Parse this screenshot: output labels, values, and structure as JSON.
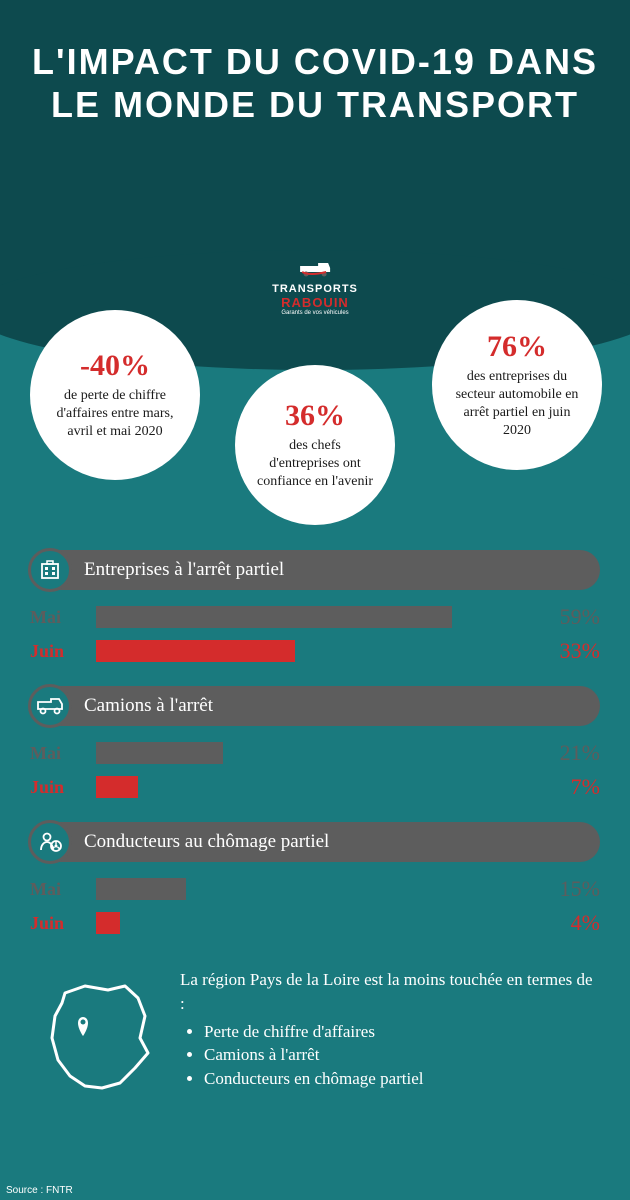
{
  "title": "L'IMPACT DU COVID-19 DANS LE MONDE DU TRANSPORT",
  "logo": {
    "line1": "TRANSPORTS",
    "line2": "RABOUIN",
    "line3": "Garants de vos véhicules"
  },
  "colors": {
    "background": "#1a7a7e",
    "header_bg": "#0d4a4e",
    "accent_red": "#d42c2c",
    "gray_bar": "#5d5d5d",
    "gray_text": "#5d5d5d",
    "white": "#ffffff"
  },
  "circles": [
    {
      "value": "-40%",
      "label": "de perte de chiffre d'affaires entre mars, avril et mai 2020"
    },
    {
      "value": "36%",
      "label": "des chefs d'entreprises ont confiance en l'avenir"
    },
    {
      "value": "76%",
      "label": "des entreprises du secteur automobile en arrêt partiel en juin 2020"
    }
  ],
  "sections": [
    {
      "title": "Entreprises à l'arrêt partiel",
      "icon": "building-icon",
      "bars": [
        {
          "label": "Mai",
          "value": 59,
          "display": "59%",
          "color": "#5d5d5d",
          "label_color": "#5d5d5d",
          "value_color": "#5d5d5d",
          "bar_max": 70
        },
        {
          "label": "Juin",
          "value": 33,
          "display": "33%",
          "color": "#d42c2c",
          "label_color": "#d42c2c",
          "value_color": "#d42c2c",
          "bar_max": 70
        }
      ]
    },
    {
      "title": "Camions à l'arrêt",
      "icon": "truck-icon",
      "bars": [
        {
          "label": "Mai",
          "value": 21,
          "display": "21%",
          "color": "#5d5d5d",
          "label_color": "#5d5d5d",
          "value_color": "#5d5d5d",
          "bar_max": 70
        },
        {
          "label": "Juin",
          "value": 7,
          "display": "7%",
          "color": "#d42c2c",
          "label_color": "#d42c2c",
          "value_color": "#d42c2c",
          "bar_max": 70
        }
      ]
    },
    {
      "title": "Conducteurs au chômage partiel",
      "icon": "driver-icon",
      "bars": [
        {
          "label": "Mai",
          "value": 15,
          "display": "15%",
          "color": "#5d5d5d",
          "label_color": "#5d5d5d",
          "value_color": "#5d5d5d",
          "bar_max": 70
        },
        {
          "label": "Juin",
          "value": 4,
          "display": "4%",
          "color": "#d42c2c",
          "label_color": "#d42c2c",
          "value_color": "#d42c2c",
          "bar_max": 70
        }
      ]
    }
  ],
  "footer": {
    "intro": "La région Pays de la Loire est la moins touchée en termes de :",
    "bullets": [
      "Perte de chiffre d'affaires",
      "Camions à l'arrêt",
      "Conducteurs en chômage partiel"
    ]
  },
  "source": "Source : FNTR"
}
